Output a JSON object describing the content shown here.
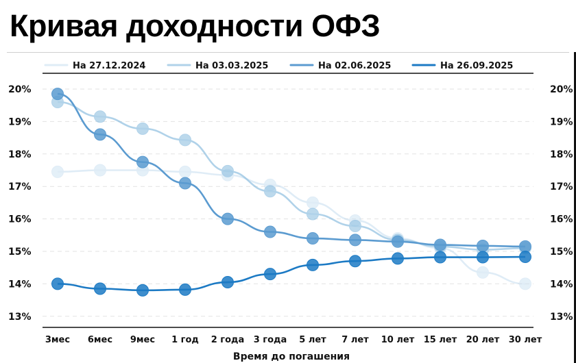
{
  "title": "Кривая доходности ОФЗ",
  "chart_data": {
    "type": "line",
    "xlabel": "Время до погашения",
    "ylabel": "",
    "ylim": [
      12.7,
      20.2
    ],
    "yticks": [
      13,
      14,
      15,
      16,
      17,
      18,
      19,
      20
    ],
    "ytick_labels": [
      "13%",
      "14%",
      "15%",
      "16%",
      "17%",
      "18%",
      "19%",
      "20%"
    ],
    "grid": true,
    "legend_position": "top",
    "categories": [
      "3мес",
      "6мес",
      "9мес",
      "1 год",
      "2 года",
      "3 года",
      "5 лет",
      "7 лет",
      "10 лет",
      "15 лет",
      "20 лет",
      "30 лет"
    ],
    "series": [
      {
        "name": "На 27.12.2024",
        "color": "#c6ddf0",
        "opacity": 0.55,
        "values": [
          17.45,
          17.5,
          17.5,
          17.45,
          17.35,
          17.05,
          16.5,
          15.95,
          15.4,
          15.1,
          14.35,
          14.0
        ]
      },
      {
        "name": "На 03.03.2025",
        "color": "#8fbfe0",
        "opacity": 0.7,
        "values": [
          19.6,
          19.15,
          18.78,
          18.43,
          17.47,
          16.85,
          16.15,
          15.78,
          15.35,
          15.15,
          15.05,
          15.1
        ]
      },
      {
        "name": "На 02.06.2025",
        "color": "#5b9bd0",
        "opacity": 1,
        "values": [
          19.85,
          18.6,
          17.75,
          17.1,
          16.0,
          15.6,
          15.4,
          15.35,
          15.3,
          15.2,
          15.17,
          15.15
        ]
      },
      {
        "name": "На 26.09.2025",
        "color": "#1c7ac4",
        "opacity": 1,
        "values": [
          14.0,
          13.85,
          13.8,
          13.82,
          14.05,
          14.3,
          14.58,
          14.7,
          14.78,
          14.82,
          14.82,
          14.83
        ]
      }
    ]
  }
}
